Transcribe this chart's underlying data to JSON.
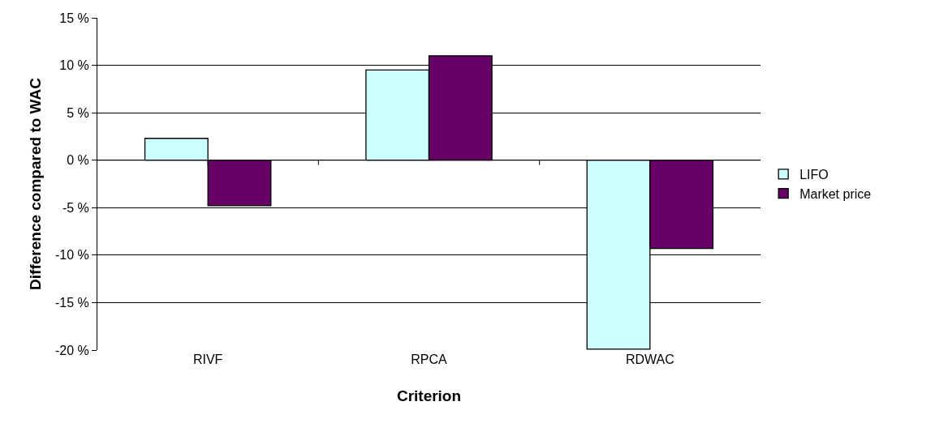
{
  "chart_data": {
    "type": "bar",
    "xlabel": "Criterion",
    "ylabel": "Difference compared to WAC",
    "categories": [
      "RIVF",
      "RPCA",
      "RDWAC"
    ],
    "series": [
      {
        "name": "LIFO",
        "color": "#ccffff",
        "values": [
          2.3,
          9.5,
          -19.9
        ]
      },
      {
        "name": "Market price",
        "color": "#660066",
        "values": [
          -4.8,
          11.0,
          -9.3
        ]
      }
    ],
    "ylim": [
      -20,
      15
    ],
    "yticks": [
      {
        "value": -20,
        "label": "-20 %"
      },
      {
        "value": -15,
        "label": "-15 %"
      },
      {
        "value": -10,
        "label": "-10 %"
      },
      {
        "value": -5,
        "label": "-5 %"
      },
      {
        "value": 0,
        "label": "0 %"
      },
      {
        "value": 5,
        "label": "5 %"
      },
      {
        "value": 10,
        "label": "10 %"
      },
      {
        "value": 15,
        "label": "15 %"
      }
    ],
    "grid": "y",
    "legend": "right"
  }
}
